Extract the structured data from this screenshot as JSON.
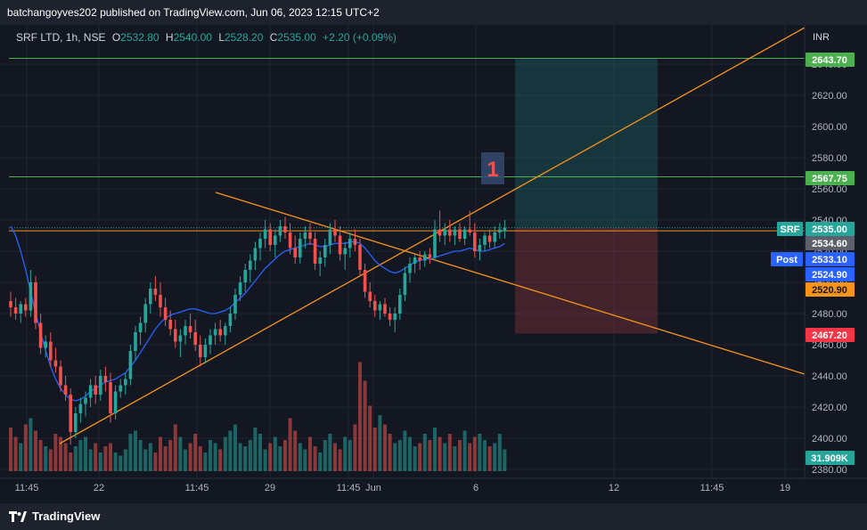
{
  "header": {
    "published_by": "batchangoyves202 published on TradingView.com, Jun 06, 2023 12:15 UTC+2"
  },
  "legend": {
    "symbol": "SRF LTD, 1h, NSE",
    "open_label": "O",
    "open": "2532.80",
    "high_label": "H",
    "high": "2540.00",
    "low_label": "L",
    "low": "2528.20",
    "close_label": "C",
    "close": "2535.00",
    "change": "+2.20 (+0.09%)"
  },
  "footer": {
    "brand": "TradingView"
  },
  "colors": {
    "up": "#26a69a",
    "down": "#ef5350",
    "ma": "#2962ff",
    "trendline": "#f7931a",
    "level": "#4caf50",
    "background": "#131722"
  },
  "chart_data": {
    "type": "candlestick",
    "currency": "INR",
    "ylim": [
      2370,
      2670
    ],
    "y_ticks": [
      2380,
      2400,
      2420,
      2440,
      2460,
      2480,
      2500,
      2520,
      2540,
      2560,
      2580,
      2600,
      2620,
      2640
    ],
    "x_ticks": [
      "11:45",
      "22",
      "11:45",
      "29",
      "11:45",
      "Jun",
      "6",
      "12",
      "11:45",
      "19"
    ],
    "price_labels": [
      {
        "value": "2643.70",
        "kind": "green"
      },
      {
        "value": "2567.75",
        "kind": "green"
      },
      {
        "value": "2535.00",
        "kind": "teal",
        "tag": "SRF"
      },
      {
        "value": "2534.60",
        "kind": "gray"
      },
      {
        "value": "2533.10",
        "kind": "blue",
        "tag": "Post"
      },
      {
        "value": "2524.90",
        "kind": "blue"
      },
      {
        "value": "2520.90",
        "kind": "orange"
      },
      {
        "value": "2467.20",
        "kind": "red"
      }
    ],
    "volume_label": "31.909K",
    "annotation": "1",
    "horizontal_levels": [
      2643.7,
      2567.75,
      2533.1
    ],
    "position": {
      "entry": 2535.0,
      "target": 2643.7,
      "stop": 2467.2
    },
    "candles": [
      {
        "o": 2488,
        "h": 2494,
        "l": 2478,
        "c": 2484
      },
      {
        "o": 2484,
        "h": 2490,
        "l": 2476,
        "c": 2480
      },
      {
        "o": 2480,
        "h": 2488,
        "l": 2474,
        "c": 2486
      },
      {
        "o": 2486,
        "h": 2490,
        "l": 2478,
        "c": 2482
      },
      {
        "o": 2482,
        "h": 2508,
        "l": 2478,
        "c": 2500
      },
      {
        "o": 2500,
        "h": 2504,
        "l": 2470,
        "c": 2474
      },
      {
        "o": 2474,
        "h": 2480,
        "l": 2454,
        "c": 2458
      },
      {
        "o": 2458,
        "h": 2466,
        "l": 2452,
        "c": 2462
      },
      {
        "o": 2462,
        "h": 2468,
        "l": 2446,
        "c": 2450
      },
      {
        "o": 2450,
        "h": 2458,
        "l": 2442,
        "c": 2446
      },
      {
        "o": 2446,
        "h": 2450,
        "l": 2430,
        "c": 2434
      },
      {
        "o": 2434,
        "h": 2440,
        "l": 2424,
        "c": 2428
      },
      {
        "o": 2428,
        "h": 2432,
        "l": 2396,
        "c": 2404
      },
      {
        "o": 2404,
        "h": 2420,
        "l": 2400,
        "c": 2416
      },
      {
        "o": 2416,
        "h": 2426,
        "l": 2410,
        "c": 2422
      },
      {
        "o": 2422,
        "h": 2430,
        "l": 2414,
        "c": 2426
      },
      {
        "o": 2426,
        "h": 2438,
        "l": 2420,
        "c": 2434
      },
      {
        "o": 2434,
        "h": 2440,
        "l": 2422,
        "c": 2428
      },
      {
        "o": 2428,
        "h": 2444,
        "l": 2424,
        "c": 2440
      },
      {
        "o": 2440,
        "h": 2446,
        "l": 2430,
        "c": 2436
      },
      {
        "o": 2436,
        "h": 2442,
        "l": 2410,
        "c": 2416
      },
      {
        "o": 2416,
        "h": 2434,
        "l": 2412,
        "c": 2430
      },
      {
        "o": 2430,
        "h": 2438,
        "l": 2426,
        "c": 2434
      },
      {
        "o": 2434,
        "h": 2442,
        "l": 2428,
        "c": 2438
      },
      {
        "o": 2438,
        "h": 2460,
        "l": 2434,
        "c": 2456
      },
      {
        "o": 2456,
        "h": 2472,
        "l": 2450,
        "c": 2468
      },
      {
        "o": 2468,
        "h": 2478,
        "l": 2460,
        "c": 2474
      },
      {
        "o": 2474,
        "h": 2490,
        "l": 2468,
        "c": 2486
      },
      {
        "o": 2486,
        "h": 2500,
        "l": 2480,
        "c": 2496
      },
      {
        "o": 2496,
        "h": 2504,
        "l": 2488,
        "c": 2492
      },
      {
        "o": 2492,
        "h": 2500,
        "l": 2478,
        "c": 2484
      },
      {
        "o": 2484,
        "h": 2490,
        "l": 2472,
        "c": 2476
      },
      {
        "o": 2476,
        "h": 2482,
        "l": 2466,
        "c": 2470
      },
      {
        "o": 2470,
        "h": 2476,
        "l": 2458,
        "c": 2462
      },
      {
        "o": 2462,
        "h": 2470,
        "l": 2452,
        "c": 2466
      },
      {
        "o": 2466,
        "h": 2476,
        "l": 2460,
        "c": 2472
      },
      {
        "o": 2472,
        "h": 2480,
        "l": 2464,
        "c": 2468
      },
      {
        "o": 2468,
        "h": 2476,
        "l": 2456,
        "c": 2460
      },
      {
        "o": 2460,
        "h": 2466,
        "l": 2446,
        "c": 2452
      },
      {
        "o": 2452,
        "h": 2464,
        "l": 2448,
        "c": 2460
      },
      {
        "o": 2460,
        "h": 2470,
        "l": 2454,
        "c": 2466
      },
      {
        "o": 2466,
        "h": 2474,
        "l": 2460,
        "c": 2470
      },
      {
        "o": 2470,
        "h": 2476,
        "l": 2462,
        "c": 2466
      },
      {
        "o": 2466,
        "h": 2474,
        "l": 2460,
        "c": 2472
      },
      {
        "o": 2472,
        "h": 2484,
        "l": 2468,
        "c": 2480
      },
      {
        "o": 2480,
        "h": 2496,
        "l": 2476,
        "c": 2492
      },
      {
        "o": 2492,
        "h": 2504,
        "l": 2488,
        "c": 2500
      },
      {
        "o": 2500,
        "h": 2512,
        "l": 2494,
        "c": 2508
      },
      {
        "o": 2508,
        "h": 2518,
        "l": 2500,
        "c": 2514
      },
      {
        "o": 2514,
        "h": 2526,
        "l": 2508,
        "c": 2522
      },
      {
        "o": 2522,
        "h": 2532,
        "l": 2514,
        "c": 2528
      },
      {
        "o": 2528,
        "h": 2540,
        "l": 2522,
        "c": 2534
      },
      {
        "o": 2534,
        "h": 2538,
        "l": 2520,
        "c": 2524
      },
      {
        "o": 2524,
        "h": 2534,
        "l": 2516,
        "c": 2530
      },
      {
        "o": 2530,
        "h": 2540,
        "l": 2526,
        "c": 2536
      },
      {
        "o": 2536,
        "h": 2542,
        "l": 2528,
        "c": 2532
      },
      {
        "o": 2532,
        "h": 2538,
        "l": 2518,
        "c": 2522
      },
      {
        "o": 2522,
        "h": 2530,
        "l": 2512,
        "c": 2516
      },
      {
        "o": 2516,
        "h": 2532,
        "l": 2512,
        "c": 2528
      },
      {
        "o": 2528,
        "h": 2536,
        "l": 2522,
        "c": 2532
      },
      {
        "o": 2532,
        "h": 2538,
        "l": 2524,
        "c": 2528
      },
      {
        "o": 2528,
        "h": 2532,
        "l": 2508,
        "c": 2512
      },
      {
        "o": 2512,
        "h": 2520,
        "l": 2504,
        "c": 2516
      },
      {
        "o": 2516,
        "h": 2528,
        "l": 2510,
        "c": 2524
      },
      {
        "o": 2524,
        "h": 2538,
        "l": 2518,
        "c": 2534
      },
      {
        "o": 2534,
        "h": 2540,
        "l": 2526,
        "c": 2530
      },
      {
        "o": 2530,
        "h": 2536,
        "l": 2514,
        "c": 2518
      },
      {
        "o": 2518,
        "h": 2526,
        "l": 2508,
        "c": 2522
      },
      {
        "o": 2522,
        "h": 2532,
        "l": 2516,
        "c": 2528
      },
      {
        "o": 2528,
        "h": 2534,
        "l": 2520,
        "c": 2524
      },
      {
        "o": 2524,
        "h": 2528,
        "l": 2504,
        "c": 2508
      },
      {
        "o": 2508,
        "h": 2512,
        "l": 2490,
        "c": 2494
      },
      {
        "o": 2494,
        "h": 2500,
        "l": 2484,
        "c": 2488
      },
      {
        "o": 2488,
        "h": 2492,
        "l": 2478,
        "c": 2482
      },
      {
        "o": 2482,
        "h": 2488,
        "l": 2476,
        "c": 2486
      },
      {
        "o": 2486,
        "h": 2490,
        "l": 2478,
        "c": 2480
      },
      {
        "o": 2480,
        "h": 2484,
        "l": 2472,
        "c": 2476
      },
      {
        "o": 2476,
        "h": 2484,
        "l": 2468,
        "c": 2480
      },
      {
        "o": 2480,
        "h": 2496,
        "l": 2476,
        "c": 2492
      },
      {
        "o": 2492,
        "h": 2510,
        "l": 2488,
        "c": 2506
      },
      {
        "o": 2506,
        "h": 2516,
        "l": 2500,
        "c": 2512
      },
      {
        "o": 2512,
        "h": 2518,
        "l": 2506,
        "c": 2516
      },
      {
        "o": 2516,
        "h": 2520,
        "l": 2508,
        "c": 2514
      },
      {
        "o": 2514,
        "h": 2520,
        "l": 2510,
        "c": 2518
      },
      {
        "o": 2518,
        "h": 2522,
        "l": 2512,
        "c": 2516
      },
      {
        "o": 2516,
        "h": 2540,
        "l": 2514,
        "c": 2534
      },
      {
        "o": 2534,
        "h": 2546,
        "l": 2526,
        "c": 2530
      },
      {
        "o": 2530,
        "h": 2538,
        "l": 2524,
        "c": 2534
      },
      {
        "o": 2534,
        "h": 2540,
        "l": 2526,
        "c": 2530
      },
      {
        "o": 2530,
        "h": 2536,
        "l": 2524,
        "c": 2534
      },
      {
        "o": 2534,
        "h": 2538,
        "l": 2526,
        "c": 2528
      },
      {
        "o": 2528,
        "h": 2536,
        "l": 2524,
        "c": 2534
      },
      {
        "o": 2534,
        "h": 2546,
        "l": 2530,
        "c": 2532
      },
      {
        "o": 2532,
        "h": 2538,
        "l": 2516,
        "c": 2520
      },
      {
        "o": 2520,
        "h": 2528,
        "l": 2514,
        "c": 2524
      },
      {
        "o": 2524,
        "h": 2532,
        "l": 2520,
        "c": 2530
      },
      {
        "o": 2530,
        "h": 2534,
        "l": 2522,
        "c": 2526
      },
      {
        "o": 2526,
        "h": 2536,
        "l": 2522,
        "c": 2532
      },
      {
        "o": 2532,
        "h": 2538,
        "l": 2528,
        "c": 2534
      },
      {
        "o": 2532.8,
        "h": 2540,
        "l": 2528.2,
        "c": 2535
      }
    ],
    "volumes": [
      28,
      22,
      18,
      30,
      34,
      26,
      20,
      16,
      14,
      24,
      22,
      18,
      12,
      16,
      20,
      22,
      14,
      18,
      12,
      16,
      18,
      12,
      10,
      14,
      24,
      26,
      20,
      14,
      18,
      12,
      22,
      16,
      20,
      30,
      22,
      14,
      18,
      24,
      16,
      12,
      20,
      18,
      14,
      22,
      26,
      30,
      18,
      16,
      20,
      28,
      24,
      14,
      18,
      22,
      16,
      20,
      34,
      26,
      18,
      14,
      22,
      16,
      12,
      20,
      24,
      18,
      14,
      22,
      20,
      30,
      70,
      58,
      42,
      28,
      36,
      30,
      24,
      18,
      20,
      26,
      22,
      16,
      18,
      24,
      20,
      28,
      22,
      18,
      24,
      16,
      20,
      26,
      18,
      22,
      24,
      20,
      16,
      18,
      24,
      14
    ],
    "ma": [
      2536,
      2530,
      2520,
      2508,
      2494,
      2480,
      2468,
      2456,
      2446,
      2438,
      2432,
      2428,
      2425,
      2424,
      2425,
      2427,
      2430,
      2432,
      2434,
      2436,
      2437,
      2438,
      2440,
      2442,
      2446,
      2450,
      2455,
      2460,
      2465,
      2470,
      2474,
      2477,
      2479,
      2480,
      2481,
      2482,
      2483,
      2483,
      2482,
      2481,
      2480,
      2480,
      2481,
      2482,
      2484,
      2487,
      2490,
      2493,
      2497,
      2501,
      2505,
      2509,
      2512,
      2515,
      2518,
      2520,
      2521,
      2522,
      2523,
      2524,
      2525,
      2524,
      2523,
      2523,
      2524,
      2525,
      2525,
      2525,
      2526,
      2526,
      2525,
      2522,
      2518,
      2514,
      2511,
      2509,
      2507,
      2506,
      2507,
      2509,
      2511,
      2513,
      2514,
      2515,
      2515,
      2516,
      2517,
      2518,
      2519,
      2520,
      2520,
      2521,
      2522,
      2521,
      2520,
      2520,
      2521,
      2522,
      2523,
      2524.9
    ]
  }
}
